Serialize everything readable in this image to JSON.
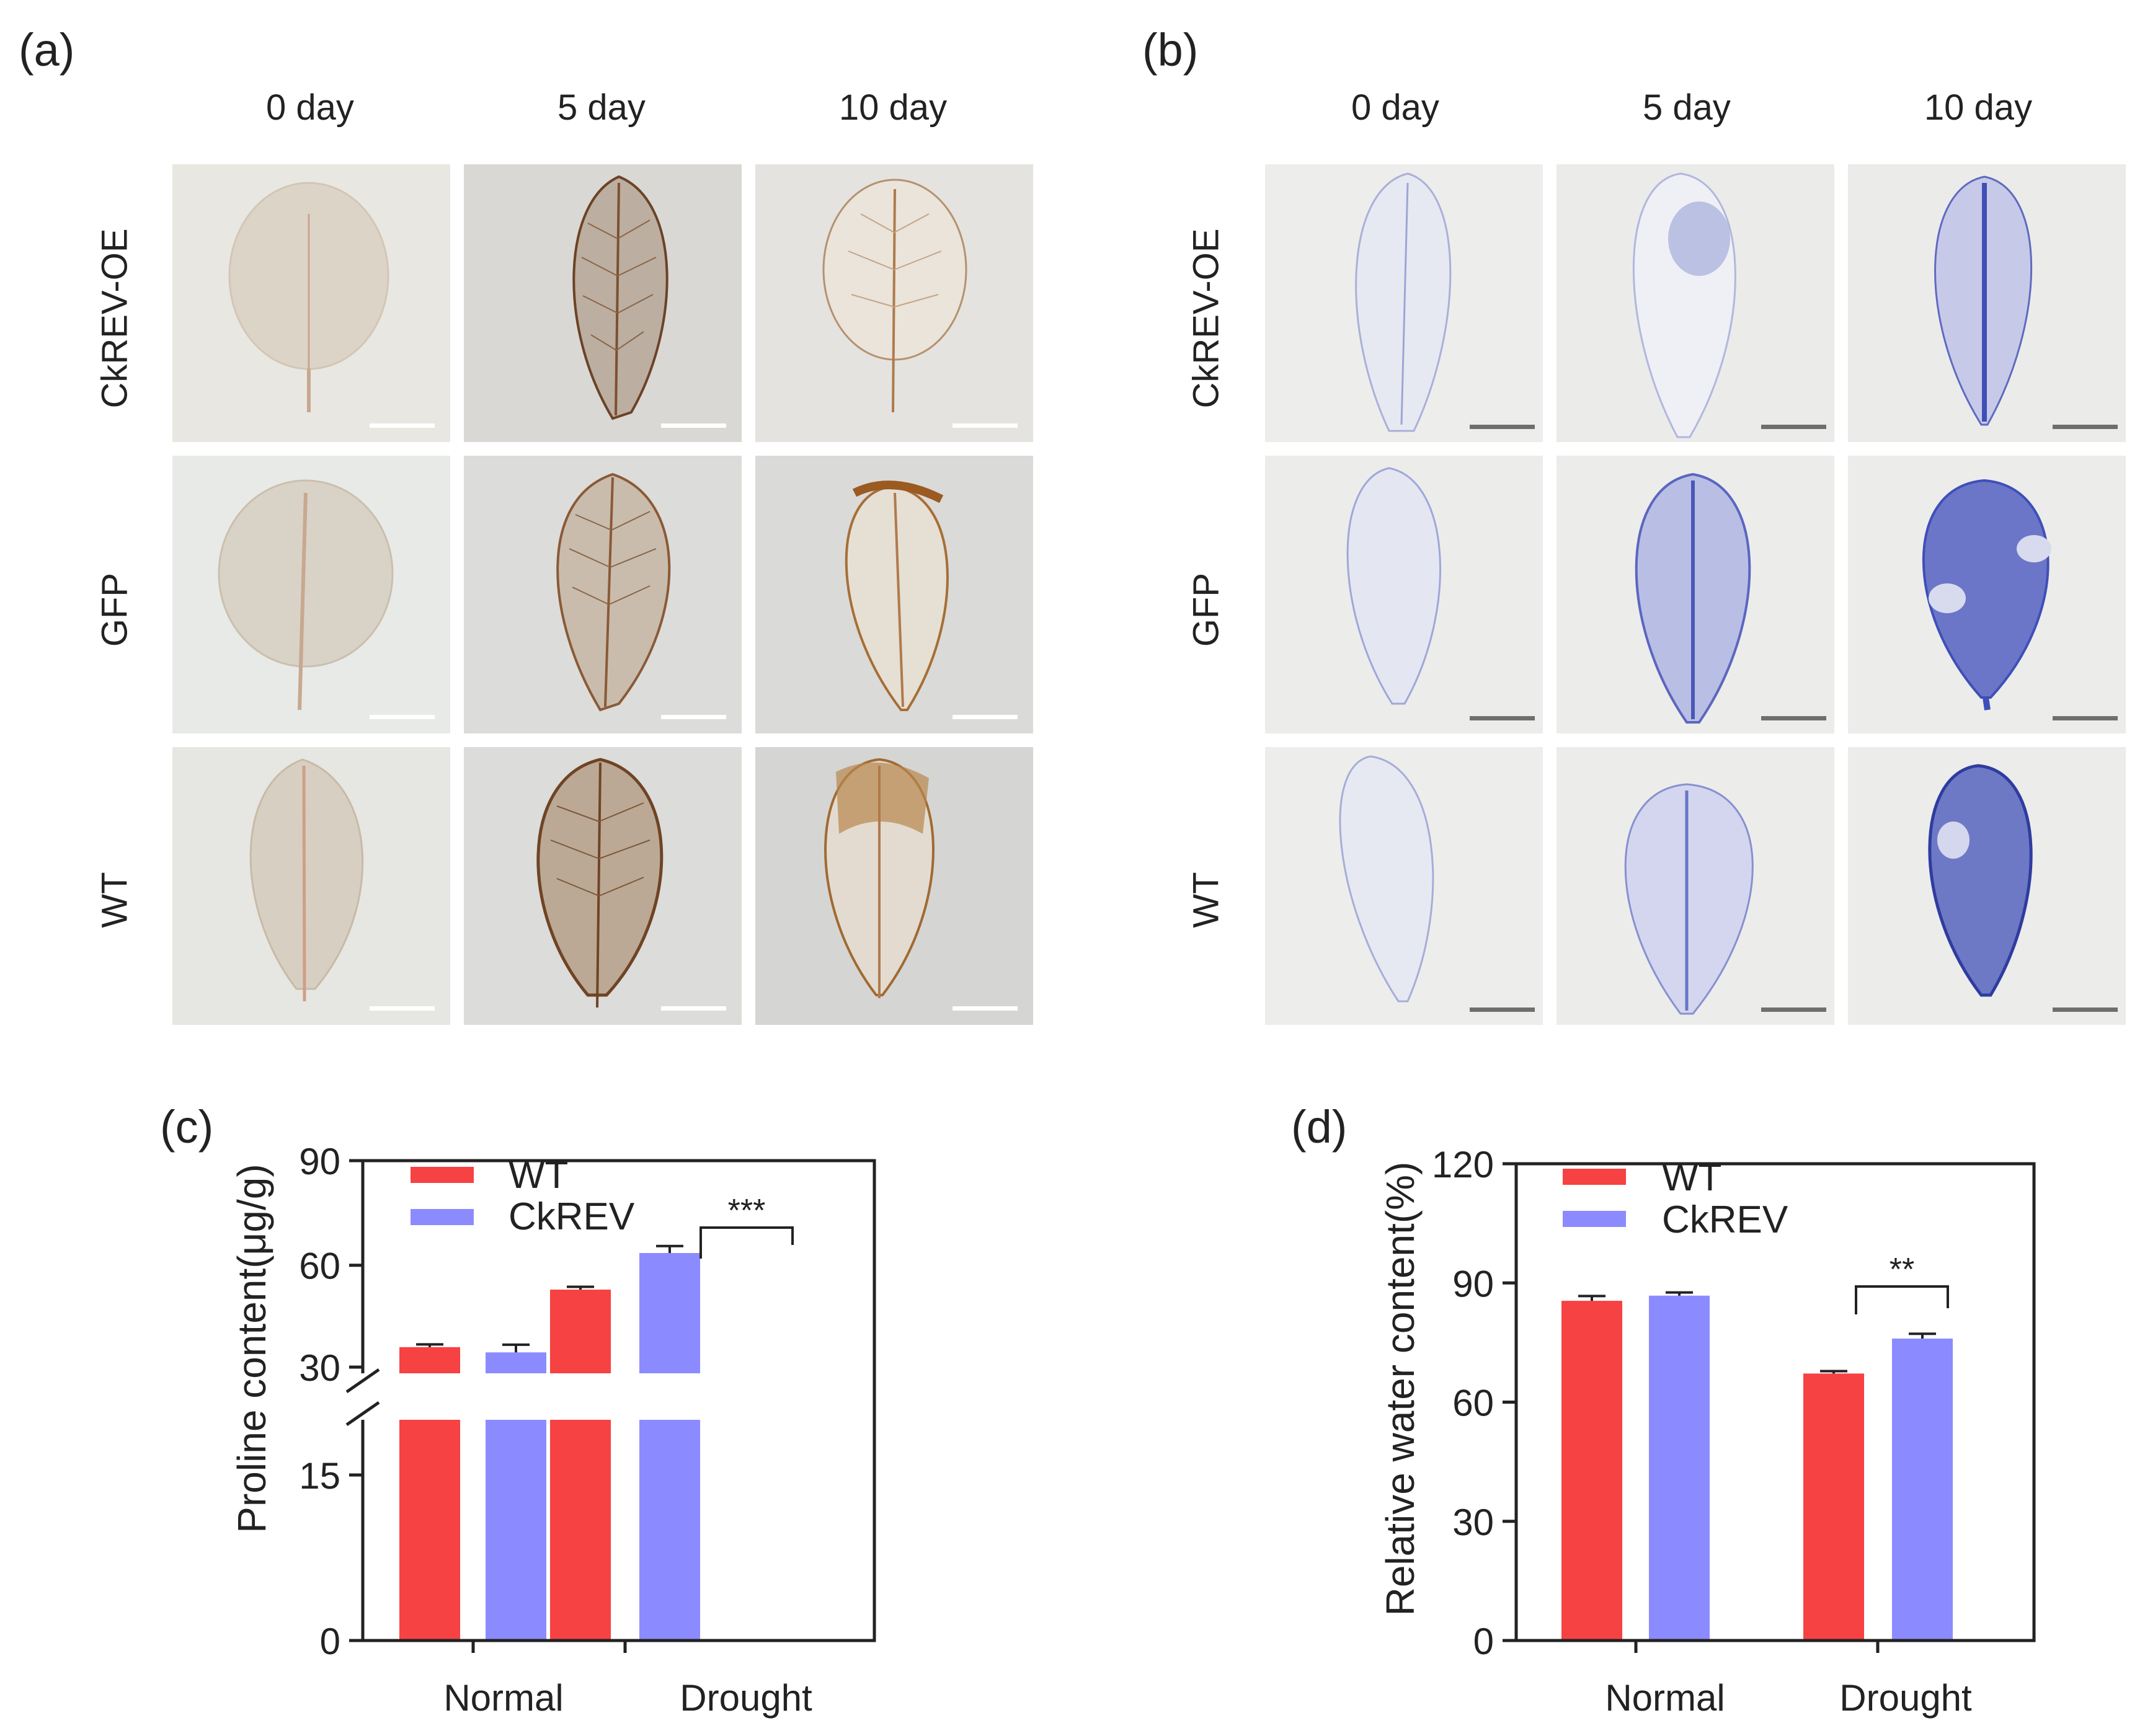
{
  "panels": {
    "a": {
      "label": "(a)",
      "columns": [
        "0 day",
        "5 day",
        "10 day"
      ],
      "rows": [
        "CkREV-OE",
        "GFP",
        "WT"
      ]
    },
    "b": {
      "label": "(b)",
      "columns": [
        "0 day",
        "5 day",
        "10 day"
      ],
      "rows": [
        "CkREV-OE",
        "GFP",
        "WT"
      ]
    },
    "c": {
      "label": "(c)"
    },
    "d": {
      "label": "(d)"
    }
  },
  "colors": {
    "wt": "#f64242",
    "ckrev": "#8b8bff",
    "dab_stain": "#a8621e",
    "nbt_stain": "#3f4fb8"
  },
  "chart_data": [
    {
      "type": "bar",
      "title": "",
      "ylabel": "Proline content(μg/g)",
      "xlabel": "",
      "categories": [
        "Normal",
        "Drought"
      ],
      "series": [
        {
          "name": "WT",
          "values": [
            36.5,
            53
          ],
          "errors": [
            0.8,
            0.8
          ]
        },
        {
          "name": "CkREV",
          "values": [
            35,
            63.5
          ],
          "errors": [
            2.2,
            2.0
          ]
        }
      ],
      "axis_break": {
        "lower": [
          0,
          20
        ],
        "upper": [
          29,
          90
        ]
      },
      "yticks": [
        0,
        15,
        30,
        60,
        90
      ],
      "legend": [
        "WT",
        "CkREV"
      ],
      "annotation": {
        "text": "***",
        "category": "Drought"
      }
    },
    {
      "type": "bar",
      "title": "",
      "ylabel": "Relative water content(%)",
      "xlabel": "",
      "categories": [
        "Normal",
        "Drought"
      ],
      "series": [
        {
          "name": "WT",
          "values": [
            85.5,
            67.2
          ],
          "errors": [
            1.2,
            0.6
          ]
        },
        {
          "name": "CkREV",
          "values": [
            86.8,
            76.0
          ],
          "errors": [
            0.8,
            1.2
          ]
        }
      ],
      "ylim": [
        0,
        120
      ],
      "yticks": [
        0,
        30,
        60,
        90,
        120
      ],
      "legend": [
        "WT",
        "CkREV"
      ],
      "annotation": {
        "text": "**",
        "category": "Drought"
      }
    }
  ]
}
